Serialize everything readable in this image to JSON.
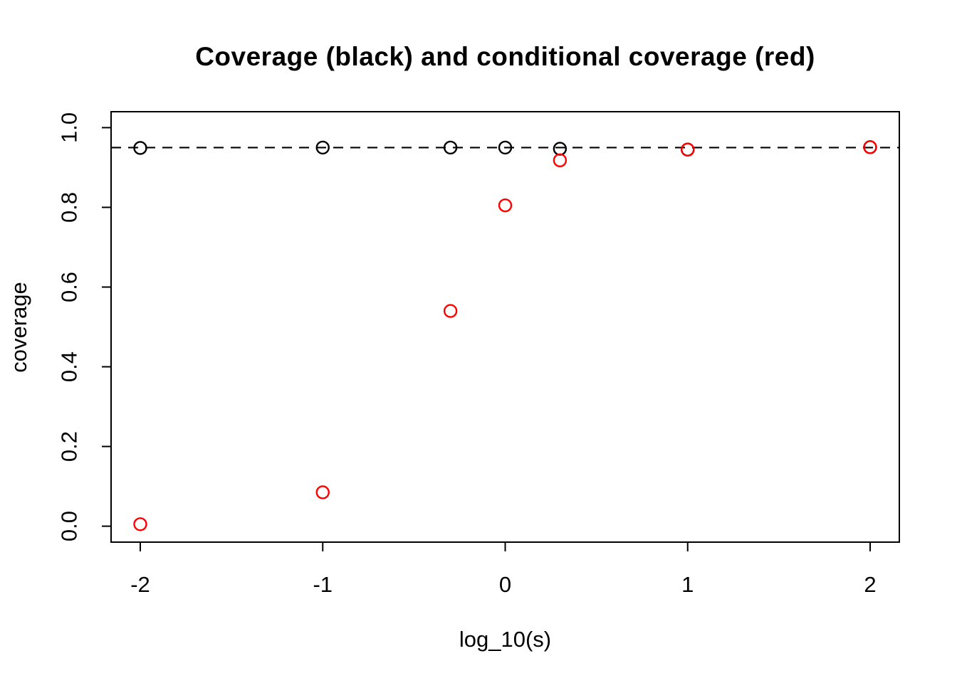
{
  "chart_data": {
    "type": "scatter",
    "title": "Coverage (black) and conditional coverage (red)",
    "xlabel": "log_10(s)",
    "ylabel": "coverage",
    "xlim": [
      -2.16,
      2.16
    ],
    "ylim": [
      -0.04,
      1.04
    ],
    "grid": false,
    "legend_position": "none",
    "x_ticks": {
      "values": [
        -2,
        -1,
        0,
        1,
        2
      ],
      "labels": [
        "-2",
        "-1",
        "0",
        "1",
        "2"
      ]
    },
    "y_ticks": {
      "values": [
        0.0,
        0.2,
        0.4,
        0.6,
        0.8,
        1.0
      ],
      "labels": [
        "0.0",
        "0.2",
        "0.4",
        "0.6",
        "0.8",
        "1.0"
      ]
    },
    "reference_line": {
      "y": 0.95,
      "style": "dashed",
      "color": "#000000"
    },
    "marker": "open-circle",
    "x": [
      -2,
      -1,
      -0.3,
      0,
      0.3,
      1,
      2
    ],
    "series": [
      {
        "name": "coverage",
        "color": "#000000",
        "values": [
          0.949,
          0.95,
          0.95,
          0.95,
          0.947,
          0.945,
          0.951
        ]
      },
      {
        "name": "conditional coverage",
        "color": "#ff0000",
        "values": [
          0.005,
          0.085,
          0.54,
          0.805,
          0.918,
          0.945,
          0.951
        ]
      }
    ]
  }
}
